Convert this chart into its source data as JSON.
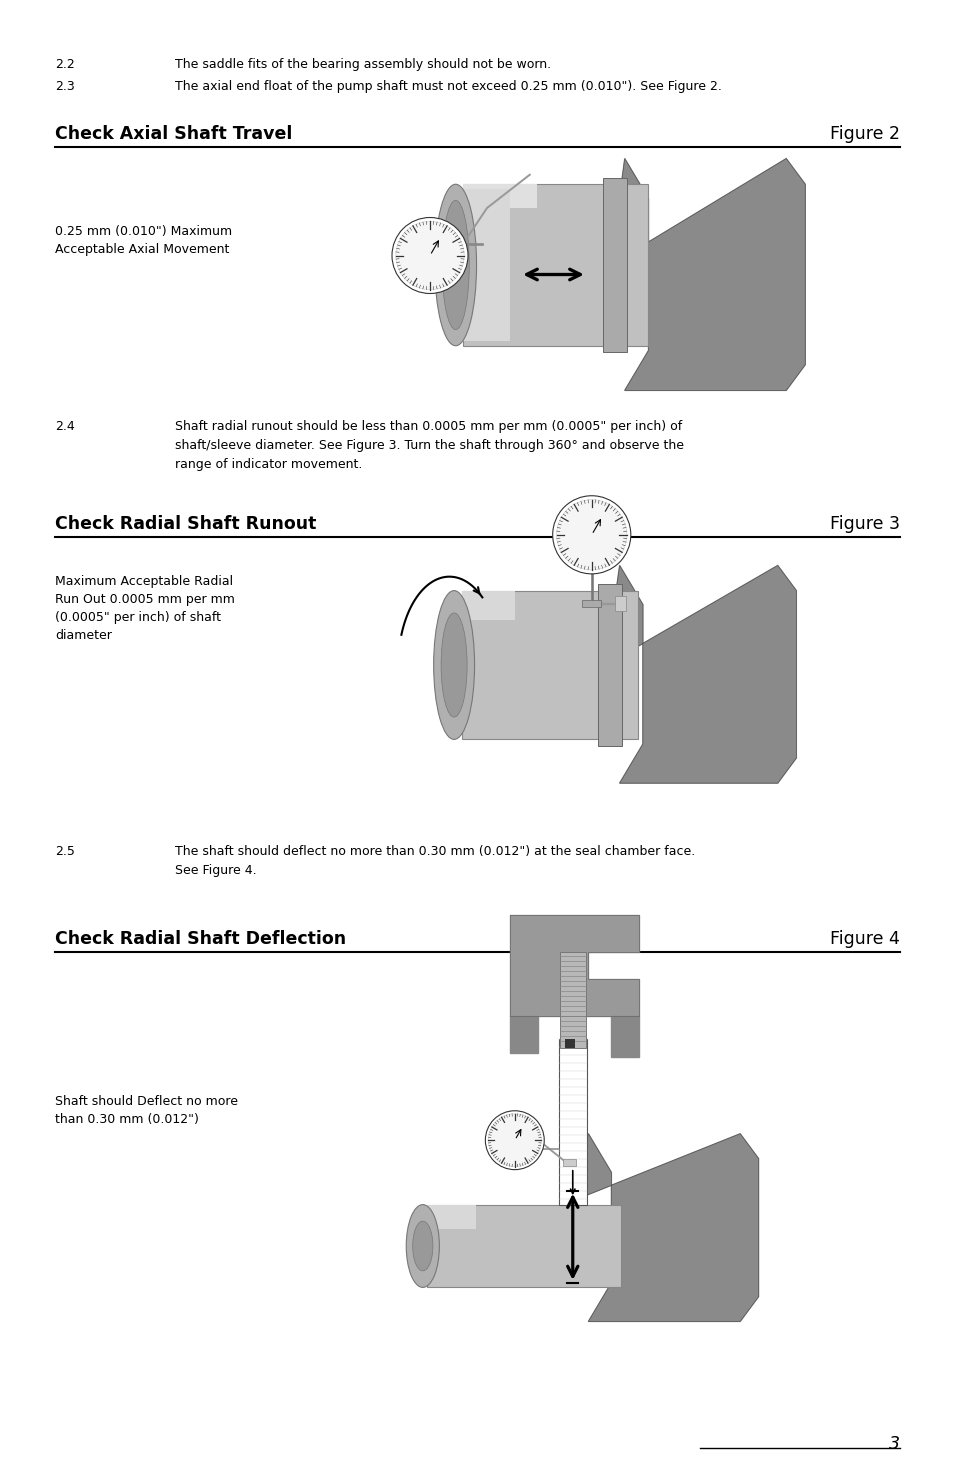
{
  "bg": "#ffffff",
  "text_color": "#000000",
  "body_fs": 9.0,
  "hdr_fs": 12.5,
  "fig_label_fs": 9.0,
  "gray_dark": "#7a7a7a",
  "gray_mid": "#b0b0b0",
  "gray_light": "#d4d4d4",
  "gray_lighter": "#e8e8e8",
  "line22": "The saddle fits of the bearing assembly should not be worn.",
  "line23": "The axial end float of the pump shaft must not exceed 0.25 mm (0.010\"). See Figure 2.",
  "hdr1": "Check Axial Shaft Travel",
  "fig1": "Figure 2",
  "lbl1a": "0.25 mm (0.010\") Maximum",
  "lbl1b": "Acceptable Axial Movement",
  "line24a": "Shaft radial runout should be less than 0.0005 mm per mm (0.0005\" per inch) of",
  "line24b": "shaft/sleeve diameter. See Figure 3. Turn the shaft through 360° and observe the",
  "line24c": "range of indicator movement.",
  "hdr2": "Check Radial Shaft Runout",
  "fig2": "Figure 3",
  "lbl2a": "Maximum Acceptable Radial",
  "lbl2b": "Run Out 0.0005 mm per mm",
  "lbl2c": "(0.0005\" per inch) of shaft",
  "lbl2d": "diameter",
  "line25a": "The shaft should deflect no more than 0.30 mm (0.012\") at the seal chamber face.",
  "line25b": "See Figure 4.",
  "hdr3": "Check Radial Shaft Deflection",
  "fig3": "Figure 4",
  "lbl3a": "Shaft should Deflect no more",
  "lbl3b": "than 0.30 mm (0.012\")",
  "pagenum": "3"
}
